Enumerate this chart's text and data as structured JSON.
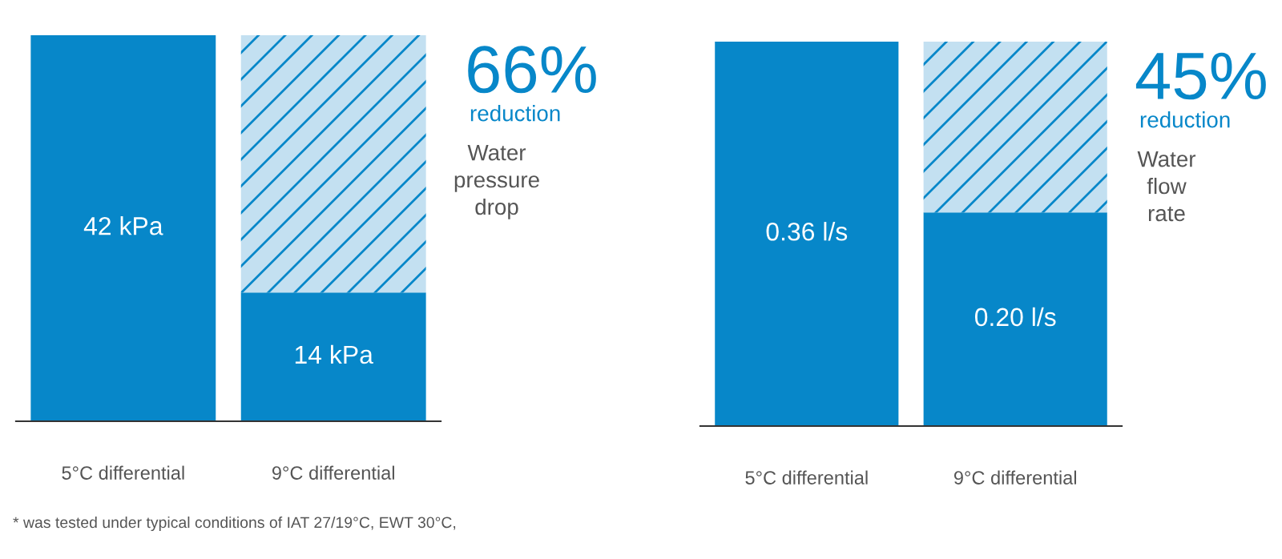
{
  "chart_data": [
    {
      "type": "bar",
      "stacked": true,
      "categories": [
        "5°C differential",
        "9°C differential"
      ],
      "series": [
        {
          "color": "#0787c9",
          "values": [
            42,
            14
          ],
          "value_labels": [
            "42 kPa",
            "14 kPa"
          ]
        },
        {
          "color": "#c3e0f1",
          "values": [
            null,
            28
          ]
        }
      ],
      "annotations": [
        "66%",
        "reduction",
        "Water\npressure\ndrop",
        "* was tested under typical conditions of IAT 27/19°C, EWT 30°C,"
      ]
    },
    {
      "type": "bar",
      "stacked": true,
      "categories": [
        "5°C differential",
        "9°C differential"
      ],
      "series": [
        {
          "color": "#0787c9",
          "values": [
            0.36,
            0.2
          ],
          "value_labels": [
            "0.36 l/s",
            "0.20 l/s"
          ]
        },
        {
          "color": "#c3e0f1",
          "values": [
            null,
            0.16
          ]
        }
      ],
      "annotations": [
        "45%",
        "reduction",
        "Water\nflow\nrate"
      ]
    }
  ]
}
